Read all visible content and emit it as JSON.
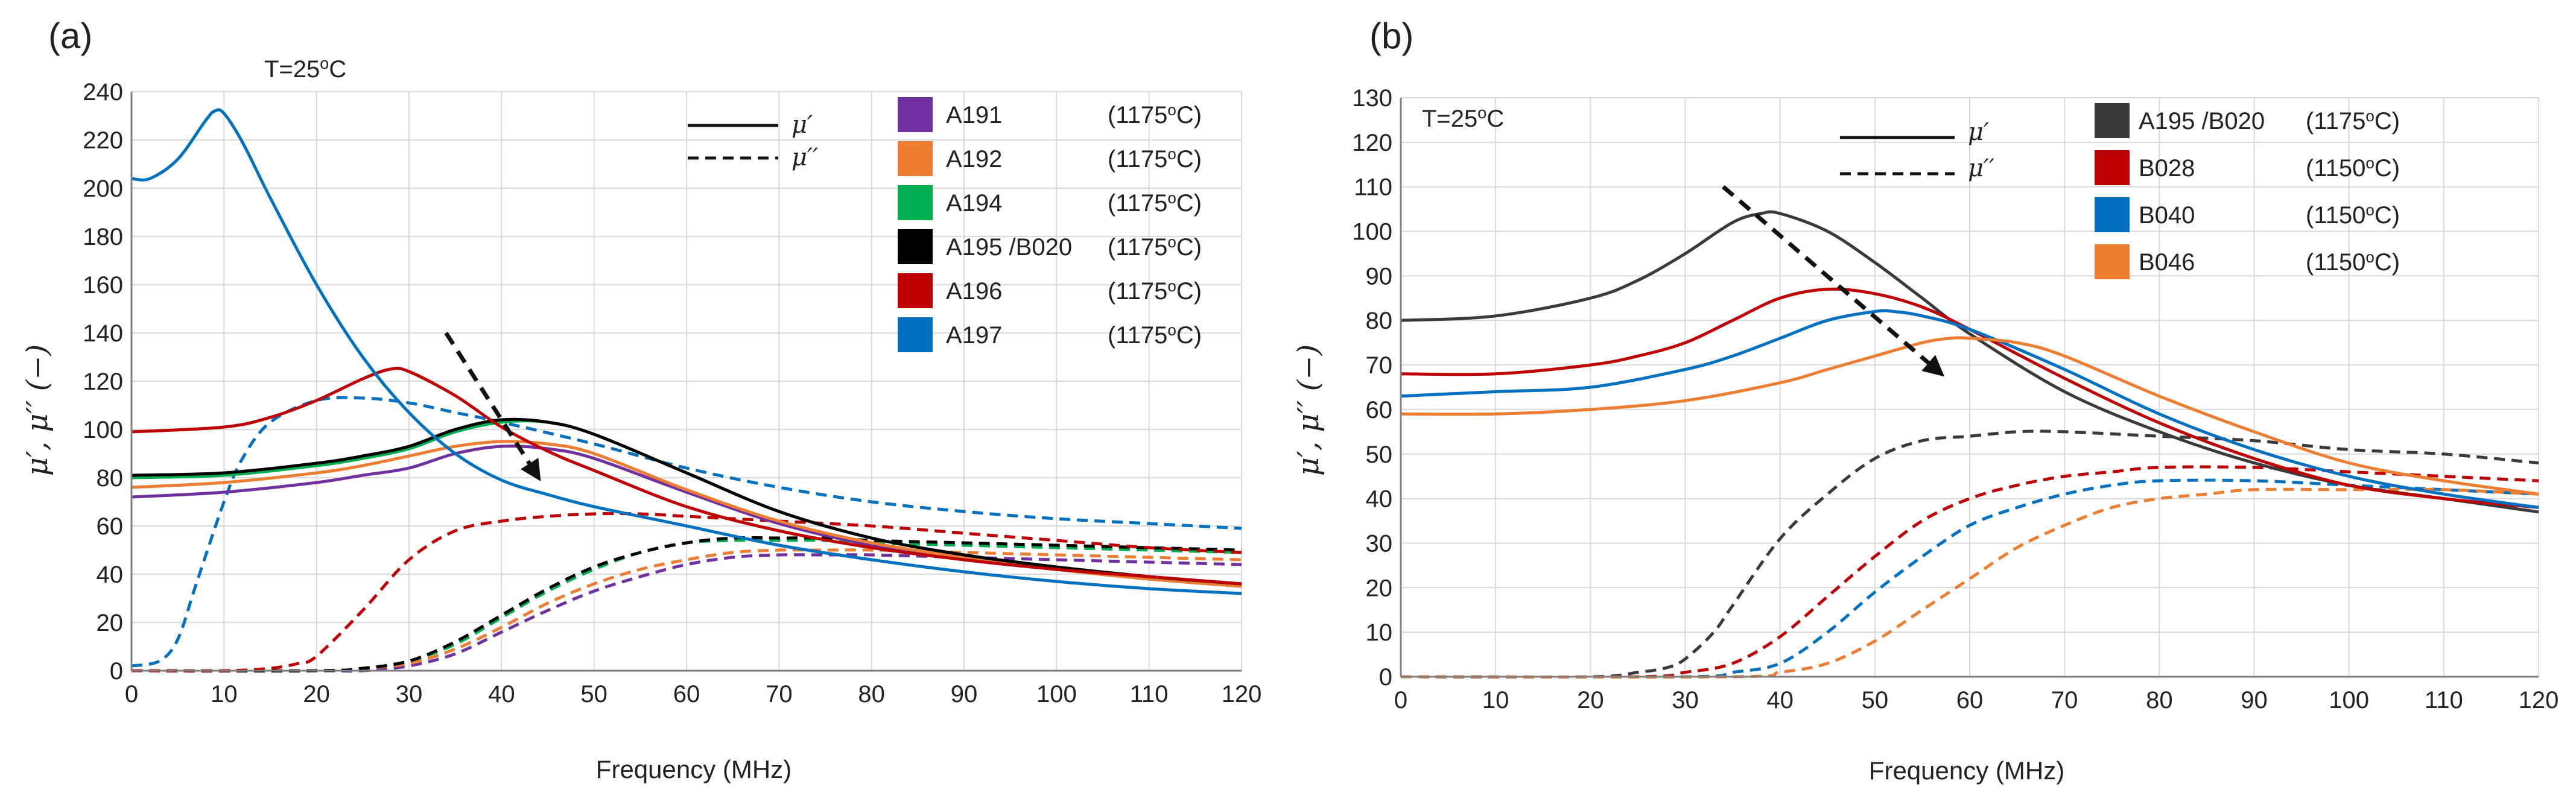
{
  "chart_data": [
    {
      "type": "line",
      "panel_label": "(a)",
      "title": "",
      "xlabel": "Frequency (MHz)",
      "ylabel": "μ′, μ′′ (−)",
      "xlim": [
        0,
        120
      ],
      "ylim": [
        0,
        240
      ],
      "x_ticks": [
        "0",
        "10",
        "20",
        "30",
        "40",
        "50",
        "60",
        "70",
        "80",
        "90",
        "100",
        "110",
        "120"
      ],
      "y_ticks": [
        "0",
        "20",
        "40",
        "60",
        "80",
        "100",
        "120",
        "140",
        "160",
        "180",
        "200",
        "220",
        "240"
      ],
      "grid": "horizontal and vertical",
      "annotation": {
        "prefix": "T=25",
        "sup": "o",
        "suffix": "C"
      },
      "line_styles": [
        {
          "symbol": "μ′",
          "style": "solid"
        },
        {
          "symbol": "μ′′",
          "style": "dashed"
        }
      ],
      "trend_arrow": {
        "from": [
          34,
          140
        ],
        "to": [
          44,
          80
        ]
      },
      "series": [
        {
          "name": "A191",
          "temp_prefix": "(1175",
          "temp_sup": "o",
          "temp_suffix": "C)",
          "color": "#7030a0",
          "mu_real": {
            "x": [
              0,
              10,
              20,
              25,
              30,
              35,
              40,
              45,
              50,
              60,
              70,
              80,
              90,
              100,
              110,
              120
            ],
            "y": [
              72,
              74,
              78,
              81,
              84,
              90,
              93,
              92,
              88,
              74,
              61,
              52,
              46,
              42,
              38,
              35
            ]
          },
          "mu_imag": {
            "x": [
              0,
              20,
              25,
              30,
              35,
              40,
              45,
              50,
              55,
              60,
              65,
              70,
              75,
              80,
              90,
              100,
              110,
              120
            ],
            "y": [
              0,
              0,
              0,
              2,
              7,
              16,
              25,
              33,
              39,
              44,
              47,
              48,
              48,
              48,
              47,
              46,
              45,
              44
            ]
          }
        },
        {
          "name": "A192",
          "temp_prefix": "(1175",
          "temp_sup": "o",
          "temp_suffix": "C)",
          "color": "#ed7d31",
          "mu_real": {
            "x": [
              0,
              10,
              20,
              25,
              30,
              35,
              40,
              45,
              50,
              60,
              70,
              80,
              90,
              100,
              110,
              120
            ],
            "y": [
              76,
              78,
              82,
              85,
              89,
              93,
              95,
              94,
              90,
              75,
              62,
              53,
              47,
              42,
              38,
              35
            ]
          },
          "mu_imag": {
            "x": [
              0,
              20,
              25,
              30,
              35,
              40,
              45,
              50,
              55,
              60,
              65,
              70,
              75,
              80,
              90,
              100,
              110,
              120
            ],
            "y": [
              0,
              0,
              1,
              3,
              9,
              18,
              28,
              36,
              42,
              46,
              49,
              50,
              50,
              50,
              49,
              48,
              47,
              46
            ]
          }
        },
        {
          "name": "A194",
          "temp_prefix": "(1175",
          "temp_sup": "o",
          "temp_suffix": "C)",
          "color": "#00b050",
          "mu_real": {
            "x": [
              0,
              10,
              20,
              25,
              30,
              35,
              40,
              45,
              50,
              60,
              70,
              80,
              90,
              100,
              110,
              120
            ],
            "y": [
              80,
              81,
              85,
              88,
              92,
              99,
              103,
              103,
              98,
              82,
              66,
              55,
              48,
              43,
              39,
              36
            ]
          },
          "mu_imag": {
            "x": [
              0,
              20,
              25,
              30,
              35,
              40,
              45,
              50,
              55,
              60,
              65,
              70,
              75,
              80,
              90,
              100,
              110,
              120
            ],
            "y": [
              0,
              0,
              1,
              4,
              11,
              22,
              33,
              42,
              49,
              53,
              54,
              54,
              54,
              53,
              52,
              51,
              50,
              49
            ]
          }
        },
        {
          "name": "A195 /B020",
          "temp_prefix": "(1175",
          "temp_sup": "o",
          "temp_suffix": "C)",
          "color": "#000000",
          "mu_real": {
            "x": [
              0,
              10,
              20,
              25,
              30,
              35,
              40,
              45,
              50,
              60,
              70,
              80,
              90,
              100,
              110,
              120
            ],
            "y": [
              81,
              82,
              86,
              89,
              93,
              100,
              104,
              103,
              98,
              82,
              66,
              55,
              48,
              43,
              39,
              36
            ]
          },
          "mu_imag": {
            "x": [
              0,
              20,
              25,
              30,
              35,
              40,
              45,
              50,
              55,
              60,
              65,
              70,
              75,
              80,
              90,
              100,
              110,
              120
            ],
            "y": [
              0,
              0,
              1,
              4,
              12,
              23,
              34,
              43,
              49,
              53,
              55,
              55,
              55,
              54,
              53,
              52,
              51,
              50
            ]
          }
        },
        {
          "name": "A196",
          "temp_prefix": "(1175",
          "temp_sup": "o",
          "temp_suffix": "C)",
          "color": "#c00000",
          "mu_real": {
            "x": [
              0,
              10,
              15,
              20,
              25,
              28,
              30,
              35,
              40,
              45,
              50,
              60,
              70,
              80,
              90,
              100,
              110,
              120
            ],
            "y": [
              99,
              101,
              105,
              112,
              121,
              125,
              124,
              114,
              101,
              91,
              83,
              68,
              58,
              51,
              46,
              42,
              39,
              36
            ]
          },
          "mu_imag": {
            "x": [
              0,
              10,
              15,
              18,
              20,
              25,
              30,
              35,
              40,
              45,
              50,
              55,
              60,
              70,
              80,
              90,
              100,
              110,
              120
            ],
            "y": [
              0,
              0,
              1,
              3,
              6,
              25,
              46,
              58,
              62,
              64,
              65,
              65,
              64,
              62,
              60,
              57,
              54,
              51,
              49
            ]
          }
        },
        {
          "name": "A197",
          "temp_prefix": "(1175",
          "temp_sup": "o",
          "temp_suffix": "C)",
          "color": "#0070c0",
          "mu_real": {
            "x": [
              0,
              2,
              5,
              8,
              9,
              10,
              12,
              15,
              20,
              25,
              30,
              35,
              40,
              45,
              50,
              60,
              70,
              80,
              90,
              100,
              110,
              120
            ],
            "y": [
              204,
              204,
              212,
              228,
              232,
              231,
              219,
              196,
              160,
              130,
              107,
              90,
              79,
              73,
              68,
              60,
              52,
              46,
              41,
              37,
              34,
              32
            ]
          },
          "mu_imag": {
            "x": [
              0,
              3,
              5,
              7,
              10,
              12,
              15,
              20,
              25,
              30,
              35,
              40,
              50,
              60,
              70,
              80,
              90,
              100,
              110,
              120
            ],
            "y": [
              2,
              4,
              13,
              36,
              70,
              88,
              103,
              112,
              113,
              111,
              107,
              103,
              94,
              84,
              76,
              70,
              66,
              63,
              61,
              59
            ]
          }
        }
      ]
    },
    {
      "type": "line",
      "panel_label": "(b)",
      "title": "",
      "xlabel": "Frequency (MHz)",
      "ylabel": "μ′, μ′′ (−)",
      "xlim": [
        0,
        120
      ],
      "ylim": [
        0,
        130
      ],
      "x_ticks": [
        "0",
        "10",
        "20",
        "30",
        "40",
        "50",
        "60",
        "70",
        "80",
        "90",
        "100",
        "110",
        "120"
      ],
      "y_ticks": [
        "0",
        "10",
        "20",
        "30",
        "40",
        "50",
        "60",
        "70",
        "80",
        "90",
        "100",
        "110",
        "120",
        "130"
      ],
      "grid": "horizontal and vertical",
      "annotation": {
        "prefix": "T=25",
        "sup": "o",
        "suffix": "C"
      },
      "line_styles": [
        {
          "symbol": "μ′",
          "style": "solid"
        },
        {
          "symbol": "μ′′",
          "style": "dashed"
        }
      ],
      "trend_arrow": {
        "from": [
          34,
          110
        ],
        "to": [
          57,
          68
        ]
      },
      "series": [
        {
          "name": "A195 /B020",
          "temp_prefix": "(1175",
          "temp_sup": "o",
          "temp_suffix": "C)",
          "color": "#3a3a3a",
          "mu_real": {
            "x": [
              0,
              10,
              20,
              25,
              30,
              35,
              38,
              40,
              45,
              50,
              55,
              60,
              70,
              80,
              90,
              100,
              110,
              120
            ],
            "y": [
              80,
              81,
              85,
              89,
              95,
              102,
              104,
              104,
              100,
              93,
              85,
              77,
              64,
              55,
              48,
              43,
              40,
              37
            ]
          },
          "mu_imag": {
            "x": [
              0,
              20,
              25,
              28,
              30,
              33,
              35,
              40,
              45,
              50,
              55,
              60,
              65,
              70,
              80,
              90,
              100,
              110,
              120
            ],
            "y": [
              0,
              0,
              1,
              2,
              4,
              10,
              16,
              31,
              41,
              49,
              53,
              54,
              55,
              55,
              54,
              53,
              51,
              50,
              48
            ]
          }
        },
        {
          "name": "B028",
          "temp_prefix": "(1150",
          "temp_sup": "o",
          "temp_suffix": "C)",
          "color": "#c00000",
          "mu_real": {
            "x": [
              0,
              10,
              20,
              25,
              30,
              35,
              40,
              45,
              50,
              55,
              60,
              70,
              80,
              90,
              100,
              110,
              120
            ],
            "y": [
              68,
              68,
              70,
              72,
              75,
              80,
              85,
              87,
              86,
              83,
              78,
              67,
              57,
              49,
              43,
              40,
              38
            ]
          },
          "mu_imag": {
            "x": [
              0,
              25,
              30,
              35,
              40,
              45,
              50,
              55,
              60,
              65,
              70,
              75,
              80,
              90,
              100,
              110,
              120
            ],
            "y": [
              0,
              0,
              1,
              3,
              9,
              18,
              27,
              35,
              40,
              43,
              45,
              46,
              47,
              47,
              46,
              45,
              44
            ]
          }
        },
        {
          "name": "B040",
          "temp_prefix": "(1150",
          "temp_sup": "o",
          "temp_suffix": "C)",
          "color": "#0070c0",
          "mu_real": {
            "x": [
              0,
              10,
              20,
              30,
              35,
              40,
              45,
              50,
              52,
              55,
              60,
              70,
              80,
              90,
              100,
              110,
              120
            ],
            "y": [
              63,
              64,
              65,
              69,
              72,
              76,
              80,
              82,
              82,
              81,
              78,
              69,
              59,
              51,
              45,
              41,
              38
            ]
          },
          "mu_imag": {
            "x": [
              0,
              30,
              35,
              40,
              45,
              50,
              55,
              60,
              65,
              70,
              75,
              80,
              90,
              100,
              110,
              120
            ],
            "y": [
              0,
              0,
              1,
              3,
              10,
              19,
              27,
              34,
              38,
              41,
              43,
              44,
              44,
              43,
              42,
              41
            ]
          }
        },
        {
          "name": "B046",
          "temp_prefix": "(1150",
          "temp_sup": "o",
          "temp_suffix": "C)",
          "color": "#ed7d31",
          "mu_real": {
            "x": [
              0,
              10,
              20,
              30,
              40,
              45,
              50,
              55,
              58,
              60,
              65,
              70,
              80,
              90,
              100,
              110,
              120
            ],
            "y": [
              59,
              59,
              60,
              62,
              66,
              69,
              72,
              75,
              76,
              76,
              75,
              72,
              63,
              55,
              48,
              44,
              41
            ]
          },
          "mu_imag": {
            "x": [
              0,
              35,
              40,
              45,
              50,
              55,
              60,
              65,
              70,
              75,
              80,
              85,
              90,
              100,
              110,
              120
            ],
            "y": [
              0,
              0,
              1,
              3,
              8,
              15,
              22,
              29,
              34,
              38,
              40,
              41,
              42,
              42,
              42,
              41
            ]
          }
        }
      ]
    }
  ]
}
